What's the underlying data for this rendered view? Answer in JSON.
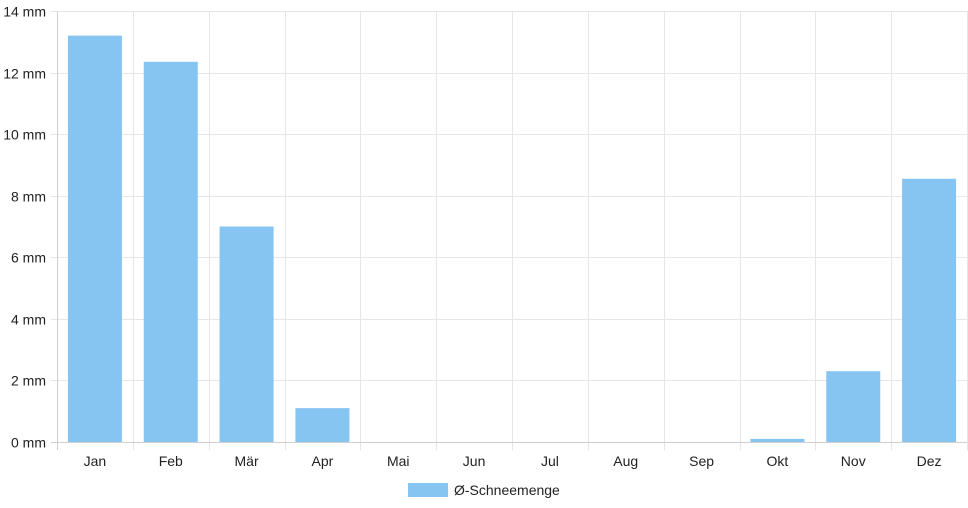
{
  "chart_data": {
    "type": "bar",
    "categories": [
      "Jan",
      "Feb",
      "Mär",
      "Apr",
      "Mai",
      "Jun",
      "Jul",
      "Aug",
      "Sep",
      "Okt",
      "Nov",
      "Dez"
    ],
    "series": [
      {
        "name": "Ø-Schneemenge",
        "values": [
          13.2,
          12.35,
          7.0,
          1.1,
          0,
          0,
          0,
          0,
          0,
          0.1,
          2.3,
          8.55
        ],
        "color": "#86c5f2"
      }
    ],
    "y_ticks": [
      "0 mm",
      "2 mm",
      "4 mm",
      "6 mm",
      "8 mm",
      "10 mm",
      "12 mm",
      "14 mm"
    ],
    "ylim": [
      0,
      14
    ],
    "y_unit": "mm",
    "grid": true,
    "legend_position": "bottom"
  }
}
